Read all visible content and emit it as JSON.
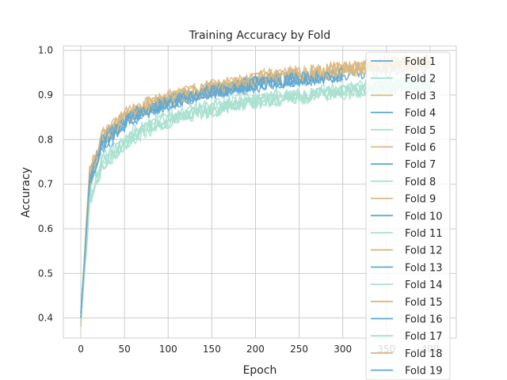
{
  "chart_data": {
    "type": "line",
    "title": "Training Accuracy by Fold",
    "xlabel": "Epoch",
    "ylabel": "Accuracy",
    "xlim": [
      -20,
      430
    ],
    "ylim": [
      0.355,
      1.01
    ],
    "xticks": [
      0,
      50,
      100,
      150,
      200,
      250,
      300,
      350,
      400
    ],
    "xtick_labels": [
      "0",
      "50",
      "100",
      "150",
      "200",
      "250",
      "300",
      "350",
      "400"
    ],
    "yticks": [
      0.4,
      0.5,
      0.6,
      0.7,
      0.8,
      0.9,
      1.0
    ],
    "ytick_labels": [
      "0.4",
      "0.5",
      "0.6",
      "0.7",
      "0.8",
      "0.9",
      "1.0"
    ],
    "grid": true,
    "legend_position": "right",
    "palette": [
      "#5fa8d3",
      "#a8e0cf",
      "#d8b882"
    ],
    "series": [
      {
        "name": "Fold 1",
        "x": [
          0,
          10,
          25,
          50,
          75,
          100,
          125,
          150,
          175,
          200,
          225,
          250,
          275,
          300,
          325,
          350,
          375,
          400
        ],
        "y": [
          0.4,
          0.7,
          0.78,
          0.83,
          0.86,
          0.88,
          0.89,
          0.9,
          0.91,
          0.92,
          0.93,
          0.935,
          0.94,
          0.945,
          0.95,
          0.955,
          0.96,
          0.96
        ]
      },
      {
        "name": "Fold 2",
        "x": [
          0,
          10,
          25,
          50,
          75,
          100,
          125,
          150,
          175,
          200,
          225,
          250,
          275,
          300,
          325,
          350,
          375,
          400
        ],
        "y": [
          0.39,
          0.66,
          0.74,
          0.79,
          0.82,
          0.84,
          0.855,
          0.865,
          0.875,
          0.885,
          0.89,
          0.895,
          0.9,
          0.905,
          0.91,
          0.915,
          0.92,
          0.92
        ]
      },
      {
        "name": "Fold 3",
        "x": [
          0,
          10,
          25,
          50,
          75,
          100,
          125,
          150,
          175,
          200,
          225,
          250,
          275,
          300,
          325,
          350,
          375,
          400
        ],
        "y": [
          0.4,
          0.72,
          0.8,
          0.85,
          0.875,
          0.89,
          0.905,
          0.915,
          0.925,
          0.935,
          0.94,
          0.945,
          0.95,
          0.955,
          0.96,
          0.965,
          0.97,
          0.97
        ]
      },
      {
        "name": "Fold 4",
        "x": [
          0,
          10,
          25,
          50,
          75,
          100,
          125,
          150,
          175,
          200,
          225,
          250,
          275,
          300
        ],
        "y": [
          0.4,
          0.7,
          0.79,
          0.84,
          0.87,
          0.885,
          0.895,
          0.905,
          0.915,
          0.925,
          0.93,
          0.935,
          0.94,
          0.945
        ]
      },
      {
        "name": "Fold 5",
        "x": [
          0,
          10,
          25,
          50,
          75,
          100,
          125,
          150,
          175,
          200,
          225,
          250,
          275,
          300,
          325,
          350,
          375,
          400
        ],
        "y": [
          0.4,
          0.67,
          0.75,
          0.795,
          0.825,
          0.845,
          0.86,
          0.87,
          0.88,
          0.89,
          0.895,
          0.9,
          0.905,
          0.91,
          0.915,
          0.92,
          0.925,
          0.925
        ]
      },
      {
        "name": "Fold 6",
        "x": [
          0,
          10,
          25,
          50,
          75,
          100,
          125,
          150,
          175,
          200,
          225,
          250,
          275,
          300,
          325,
          350,
          375,
          400
        ],
        "y": [
          0.38,
          0.72,
          0.8,
          0.855,
          0.88,
          0.895,
          0.905,
          0.915,
          0.925,
          0.935,
          0.945,
          0.95,
          0.955,
          0.96,
          0.965,
          0.97,
          0.97,
          0.975
        ]
      },
      {
        "name": "Fold 7",
        "x": [
          0,
          10,
          25,
          50,
          75,
          100,
          125,
          150,
          175,
          200,
          225,
          250,
          275,
          300
        ],
        "y": [
          0.41,
          0.71,
          0.79,
          0.84,
          0.865,
          0.88,
          0.895,
          0.905,
          0.915,
          0.925,
          0.93,
          0.935,
          0.94,
          0.945
        ]
      },
      {
        "name": "Fold 8",
        "x": [
          0,
          10,
          25,
          50,
          75,
          100,
          125,
          150,
          175,
          200,
          225,
          250,
          275,
          300,
          325,
          350,
          375,
          400
        ],
        "y": [
          0.39,
          0.66,
          0.74,
          0.79,
          0.82,
          0.84,
          0.855,
          0.865,
          0.875,
          0.88,
          0.89,
          0.895,
          0.9,
          0.905,
          0.91,
          0.915,
          0.92,
          0.92
        ]
      },
      {
        "name": "Fold 9",
        "x": [
          0,
          10,
          25,
          50,
          75,
          100,
          125,
          150,
          175,
          200,
          225,
          250,
          275,
          300,
          325,
          350,
          375,
          400
        ],
        "y": [
          0.4,
          0.73,
          0.81,
          0.855,
          0.88,
          0.895,
          0.91,
          0.92,
          0.93,
          0.94,
          0.945,
          0.95,
          0.955,
          0.96,
          0.965,
          0.97,
          0.975,
          0.975
        ]
      },
      {
        "name": "Fold 10",
        "x": [
          0,
          10,
          25,
          50,
          75,
          100,
          125,
          150,
          175,
          200,
          225,
          250
        ],
        "y": [
          0.41,
          0.71,
          0.8,
          0.845,
          0.87,
          0.885,
          0.9,
          0.91,
          0.92,
          0.93,
          0.935,
          0.94
        ]
      },
      {
        "name": "Fold 11",
        "x": [
          0,
          10,
          25,
          50,
          75,
          100,
          125,
          150,
          175,
          200,
          225,
          250,
          275,
          300,
          325,
          350,
          375,
          400
        ],
        "y": [
          0.4,
          0.67,
          0.75,
          0.8,
          0.83,
          0.85,
          0.865,
          0.875,
          0.885,
          0.89,
          0.895,
          0.9,
          0.905,
          0.91,
          0.915,
          0.92,
          0.925,
          0.925
        ]
      },
      {
        "name": "Fold 12",
        "x": [
          0,
          10,
          25,
          50,
          75,
          100,
          125,
          150,
          175,
          200,
          225,
          250,
          275,
          300,
          325,
          350,
          375,
          400
        ],
        "y": [
          0.39,
          0.72,
          0.8,
          0.85,
          0.875,
          0.89,
          0.905,
          0.915,
          0.925,
          0.935,
          0.94,
          0.945,
          0.95,
          0.955,
          0.96,
          0.965,
          0.97,
          0.97
        ]
      },
      {
        "name": "Fold 13",
        "x": [
          0,
          10,
          25,
          50,
          75,
          100,
          125,
          150,
          175,
          200,
          225,
          250,
          275,
          300
        ],
        "y": [
          0.4,
          0.7,
          0.79,
          0.84,
          0.865,
          0.88,
          0.895,
          0.905,
          0.915,
          0.925,
          0.93,
          0.935,
          0.94,
          0.945
        ]
      },
      {
        "name": "Fold 14",
        "x": [
          0,
          10,
          25,
          50,
          75,
          100,
          125,
          150,
          175,
          200,
          225,
          250,
          275,
          300,
          325,
          350,
          375,
          400
        ],
        "y": [
          0.4,
          0.68,
          0.76,
          0.805,
          0.83,
          0.85,
          0.865,
          0.875,
          0.885,
          0.89,
          0.9,
          0.905,
          0.91,
          0.915,
          0.92,
          0.925,
          0.93,
          0.93
        ]
      },
      {
        "name": "Fold 15",
        "x": [
          0,
          10,
          25,
          50,
          75,
          100,
          125,
          150,
          175,
          200,
          225,
          250,
          275,
          300,
          325,
          350,
          375,
          400
        ],
        "y": [
          0.4,
          0.72,
          0.8,
          0.85,
          0.875,
          0.89,
          0.9,
          0.91,
          0.92,
          0.93,
          0.94,
          0.945,
          0.95,
          0.955,
          0.96,
          0.965,
          0.965,
          0.97
        ]
      },
      {
        "name": "Fold 16",
        "x": [
          0,
          10,
          25,
          50,
          75,
          100,
          125,
          150,
          175,
          200,
          225,
          250
        ],
        "y": [
          0.41,
          0.71,
          0.8,
          0.845,
          0.87,
          0.885,
          0.9,
          0.91,
          0.92,
          0.93,
          0.935,
          0.94
        ]
      },
      {
        "name": "Fold 17",
        "x": [
          0,
          10,
          25,
          50,
          75,
          100,
          125,
          150,
          175,
          200,
          225,
          250,
          275,
          300,
          325,
          350,
          375,
          400
        ],
        "y": [
          0.39,
          0.66,
          0.74,
          0.79,
          0.82,
          0.84,
          0.855,
          0.865,
          0.875,
          0.885,
          0.89,
          0.895,
          0.9,
          0.905,
          0.91,
          0.915,
          0.92,
          0.92
        ]
      },
      {
        "name": "Fold 18",
        "x": [
          0,
          10,
          25,
          50,
          75,
          100,
          125,
          150,
          175,
          200,
          225,
          250,
          275,
          300,
          325,
          350,
          375,
          400
        ],
        "y": [
          0.4,
          0.73,
          0.81,
          0.855,
          0.88,
          0.895,
          0.91,
          0.92,
          0.93,
          0.94,
          0.945,
          0.95,
          0.955,
          0.96,
          0.965,
          0.97,
          0.975,
          0.975
        ]
      },
      {
        "name": "Fold 19",
        "x": [
          0,
          10,
          25,
          50,
          75,
          100,
          125,
          150,
          175,
          200,
          225,
          250,
          275,
          300
        ],
        "y": [
          0.4,
          0.7,
          0.79,
          0.84,
          0.865,
          0.88,
          0.895,
          0.905,
          0.915,
          0.925,
          0.93,
          0.935,
          0.94,
          0.945
        ]
      }
    ]
  }
}
